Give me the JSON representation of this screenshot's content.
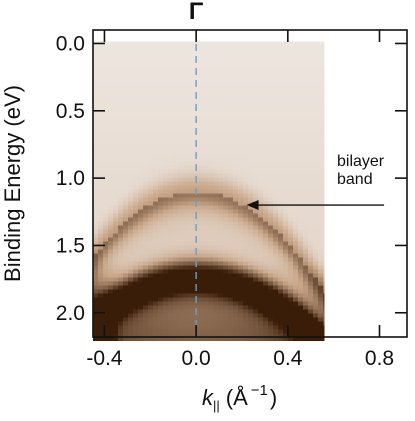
{
  "chart_data": {
    "type": "heatmap",
    "title": "",
    "top_label": "Γ",
    "xlabel": {
      "symbol": "k",
      "subscript": "||",
      "unit": "(Å",
      "exponent": "−1",
      "close": ")"
    },
    "ylabel": "Binding Energy (eV)",
    "xlim": [
      -0.45,
      0.92
    ],
    "ylim": [
      2.18,
      -0.1
    ],
    "y_inverted": true,
    "x_ticks": [
      -0.4,
      0.0,
      0.4,
      0.8
    ],
    "x_tick_labels": [
      "-0.4",
      "0.0",
      "0.4",
      "0.8"
    ],
    "y_ticks": [
      0.0,
      0.5,
      1.0,
      1.5,
      2.0
    ],
    "y_tick_labels": [
      "0.0",
      "0.5",
      "1.0",
      "1.5",
      "2.0"
    ],
    "data_extent": {
      "k_min": -0.45,
      "k_max": 0.56,
      "E_min": 0.0,
      "E_max": 2.15
    },
    "reference_line": {
      "k": 0.0,
      "style": "dashed",
      "color": "#6a9fc8"
    },
    "bands": [
      {
        "name": "bilayer band",
        "apex_k": 0.0,
        "apex_E": 1.1,
        "curvature": 2.4,
        "intensity": 0.35
      },
      {
        "name": "",
        "apex_k": 0.0,
        "apex_E": 1.72,
        "curvature": 1.6,
        "intensity": 0.85
      }
    ],
    "annotation": {
      "lines": [
        "bilayer",
        "band"
      ],
      "arrow_from": {
        "k": 0.82,
        "E": 1.2
      },
      "arrow_to": {
        "k": 0.22,
        "E": 1.2
      }
    },
    "colors": {
      "background": "#ffffff",
      "low_intensity": "#f2efec",
      "mid_intensity": "#c9a78a",
      "high_intensity": "#3a1d08",
      "reference_line": "#6a9fc8"
    }
  }
}
